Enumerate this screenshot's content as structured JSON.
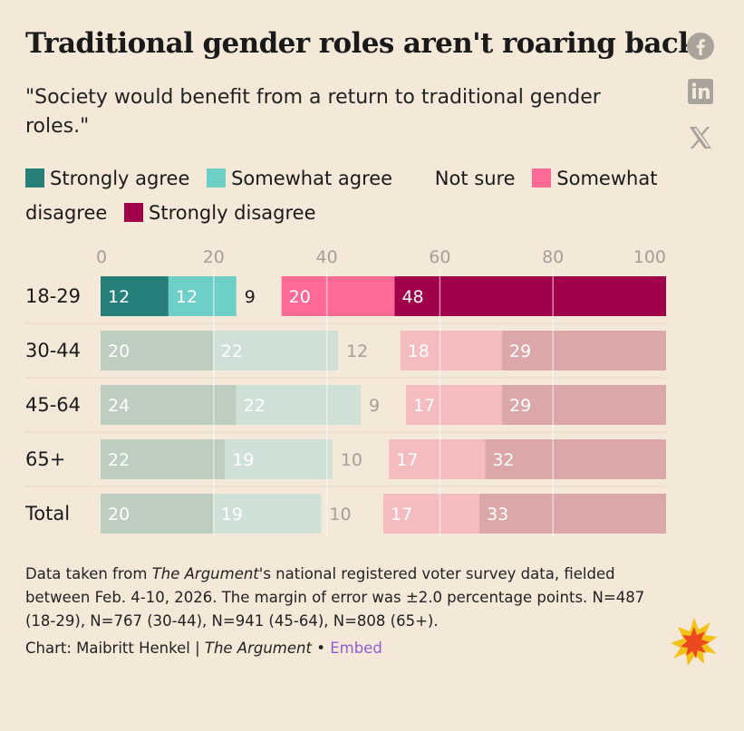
{
  "title": "Traditional gender roles aren't roaring back",
  "subtitle": "\"Society would benefit from a return to traditional gender roles.\"",
  "social": [
    {
      "name": "facebook-icon"
    },
    {
      "name": "linkedin-icon"
    },
    {
      "name": "x-icon"
    }
  ],
  "colors": {
    "strongly_agree": "#268079",
    "somewhat_agree": "#6ecfc7",
    "somewhat_disagree": "#ff6a96",
    "strongly_disagree": "#a0004a",
    "muted_strongly_agree": "#bdcdc0",
    "muted_somewhat_agree": "#cfe1d6",
    "muted_somewhat_disagree": "#f5bcc0",
    "muted_strongly_disagree": "#dba7a8",
    "background": "#f4e8d8"
  },
  "chart_data": {
    "type": "bar",
    "orientation": "horizontal-diverging-stacked",
    "xlim": [
      0,
      100
    ],
    "xticks": [
      "0",
      "20",
      "40",
      "60",
      "80",
      "100"
    ],
    "legend": [
      "Strongly agree",
      "Somewhat agree",
      "Not sure",
      "Somewhat disagree",
      "Strongly disagree"
    ],
    "highlighted_category": "18-29",
    "categories": [
      "18-29",
      "30-44",
      "45-64",
      "65+",
      "Total"
    ],
    "series": [
      {
        "name": "Strongly agree",
        "values": [
          12,
          20,
          24,
          22,
          20
        ]
      },
      {
        "name": "Somewhat agree",
        "values": [
          12,
          22,
          22,
          19,
          19
        ]
      },
      {
        "name": "Not sure",
        "values": [
          9,
          12,
          9,
          10,
          10
        ]
      },
      {
        "name": "Somewhat disagree",
        "values": [
          20,
          18,
          17,
          17,
          17
        ]
      },
      {
        "name": "Strongly disagree",
        "values": [
          48,
          29,
          29,
          32,
          33
        ]
      }
    ]
  },
  "notes": {
    "line1_pre": "Data taken from ",
    "source": "The Argument",
    "line1_post": "'s national registered voter survey data, fielded between Feb. 4-10, 2026. The margin of error was ±2.0 percentage points. N=487 (18-29), N=767 (30-44), N=941 (45-64), N=808 (65+)."
  },
  "credit": {
    "prefix": "Chart: Maibritt Henkel | ",
    "publication": "The Argument",
    "separator": " • ",
    "embed_label": "Embed"
  }
}
